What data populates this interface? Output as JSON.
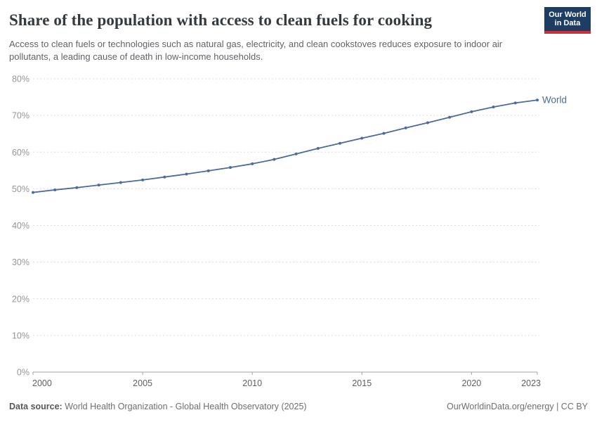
{
  "header": {
    "title": "Share of the population with access to clean fuels for cooking",
    "subtitle": "Access to clean fuels or technologies such as natural gas, electricity, and clean cookstoves reduces exposure to indoor air pollutants, a leading cause of death in low-income households.",
    "logo": {
      "line1": "Our World",
      "line2": "in Data",
      "bg_color": "#1d3d63",
      "accent_color": "#c9303a"
    }
  },
  "chart_data": {
    "type": "line",
    "title": "Share of the population with access to clean fuels for cooking",
    "unit": "%",
    "xlim": [
      2000,
      2023
    ],
    "ylim": [
      0,
      80
    ],
    "x_ticks": [
      2000,
      2005,
      2010,
      2015,
      2020,
      2023
    ],
    "y_ticks": [
      0,
      10,
      20,
      30,
      40,
      50,
      60,
      70,
      80
    ],
    "grid": "horizontal-dashed",
    "legend_position": "end-of-line-label",
    "series": [
      {
        "name": "World",
        "color": "#4C6A9C",
        "x": [
          2000,
          2001,
          2002,
          2003,
          2004,
          2005,
          2006,
          2007,
          2008,
          2009,
          2010,
          2011,
          2012,
          2013,
          2014,
          2015,
          2016,
          2017,
          2018,
          2019,
          2020,
          2021,
          2022,
          2023
        ],
        "values": [
          49.0,
          49.7,
          50.3,
          51.0,
          51.7,
          52.4,
          53.2,
          54.0,
          54.9,
          55.8,
          56.8,
          58.0,
          59.5,
          61.0,
          62.4,
          63.8,
          65.1,
          66.6,
          68.0,
          69.5,
          71.0,
          72.3,
          73.4,
          74.2
        ]
      }
    ],
    "style": {
      "grid_color": "#dcdcdc",
      "axis_color": "#a3a3a3",
      "y_label_color": "#959595",
      "x_label_color": "#5f5f5f",
      "tick_font_size": 12.5
    }
  },
  "footer": {
    "data_source_label": "Data source:",
    "data_source": " World Health Organization - Global Health Observatory (2025)",
    "attribution": "OurWorldinData.org/energy | CC BY"
  }
}
